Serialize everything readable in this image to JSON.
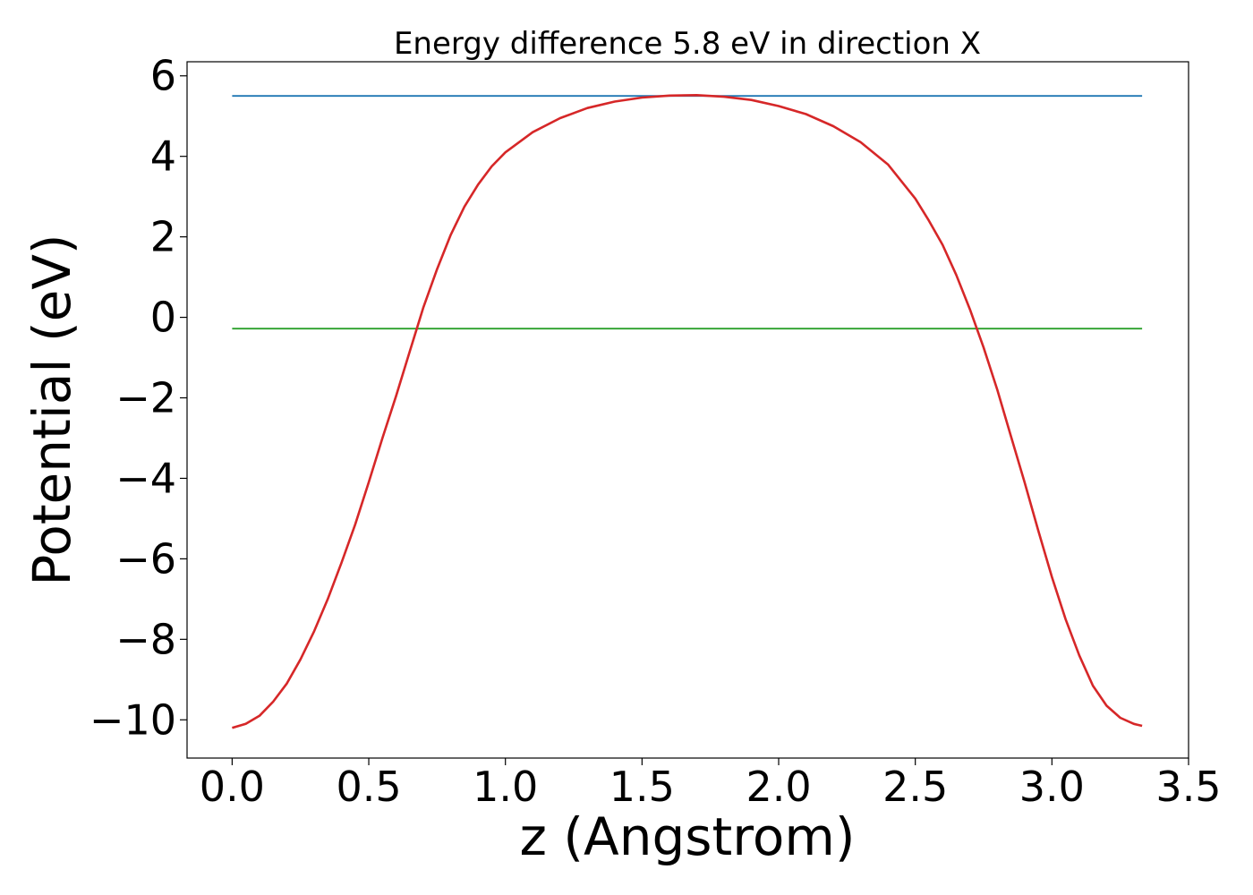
{
  "chart_data": {
    "type": "line",
    "title": "Energy difference 5.8 eV in direction X",
    "xlabel": "z (Angstrom)",
    "ylabel": "Potential (eV)",
    "xlim": [
      -0.165,
      3.5
    ],
    "ylim": [
      -10.95,
      6.35
    ],
    "xticks": [
      0.0,
      0.5,
      1.0,
      1.5,
      2.0,
      2.5,
      3.0,
      3.5
    ],
    "xtick_labels": [
      "0.0",
      "0.5",
      "1.0",
      "1.5",
      "2.0",
      "2.5",
      "3.0",
      "3.5"
    ],
    "yticks": [
      -10,
      -8,
      -6,
      -4,
      -2,
      0,
      2,
      4,
      6
    ],
    "ytick_labels": [
      "−10",
      "−8",
      "−6",
      "−4",
      "−2",
      "0",
      "2",
      "4",
      "6"
    ],
    "grid": false,
    "series": [
      {
        "color": "#d62728",
        "x": [
          0.0,
          0.05,
          0.1,
          0.15,
          0.2,
          0.25,
          0.3,
          0.35,
          0.4,
          0.45,
          0.5,
          0.55,
          0.6,
          0.65,
          0.7,
          0.75,
          0.8,
          0.85,
          0.9,
          0.95,
          1.0,
          1.1,
          1.2,
          1.3,
          1.4,
          1.5,
          1.6,
          1.7,
          1.8,
          1.9,
          2.0,
          2.1,
          2.2,
          2.3,
          2.4,
          2.5,
          2.55,
          2.6,
          2.65,
          2.7,
          2.75,
          2.8,
          2.85,
          2.9,
          2.95,
          3.0,
          3.05,
          3.1,
          3.15,
          3.2,
          3.25,
          3.3,
          3.33
        ],
        "y": [
          -10.2,
          -10.1,
          -9.9,
          -9.55,
          -9.1,
          -8.5,
          -7.8,
          -7.0,
          -6.1,
          -5.15,
          -4.1,
          -3.0,
          -1.95,
          -0.85,
          0.25,
          1.2,
          2.05,
          2.75,
          3.3,
          3.75,
          4.1,
          4.6,
          4.95,
          5.2,
          5.36,
          5.46,
          5.51,
          5.52,
          5.48,
          5.4,
          5.25,
          5.05,
          4.75,
          4.35,
          3.8,
          2.95,
          2.4,
          1.8,
          1.05,
          0.2,
          -0.75,
          -1.8,
          -2.95,
          -4.1,
          -5.3,
          -6.45,
          -7.5,
          -8.4,
          -9.15,
          -9.65,
          -9.95,
          -10.1,
          -10.15
        ]
      },
      {
        "color": "#1f77b4",
        "x": [
          0.0,
          3.33
        ],
        "y": [
          5.5,
          5.5
        ]
      },
      {
        "color": "#2ca02c",
        "x": [
          0.0,
          3.33
        ],
        "y": [
          -0.28,
          -0.28
        ]
      }
    ]
  }
}
